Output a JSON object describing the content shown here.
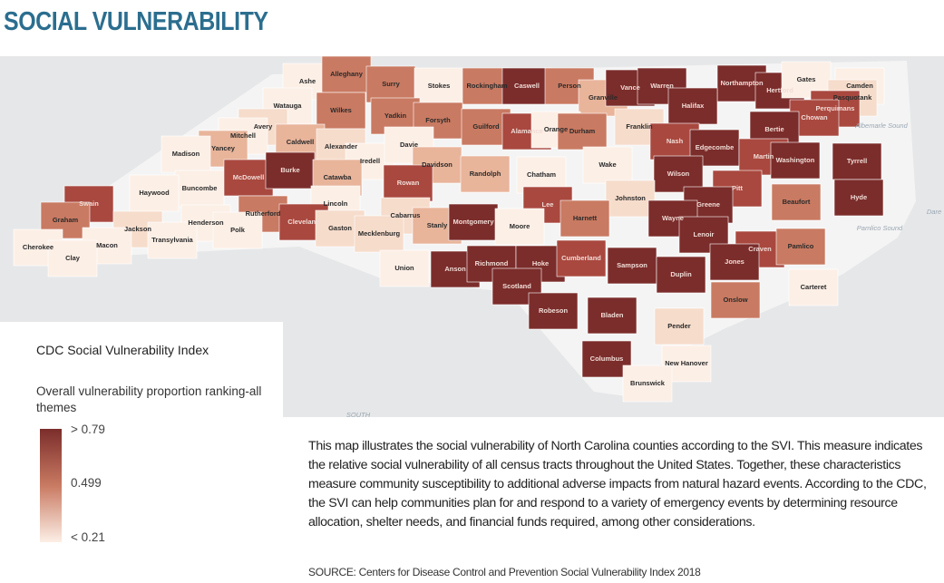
{
  "header": {
    "title": "SOCIAL VULNERABILITY"
  },
  "map": {
    "counties": [
      {
        "name": "Ashe",
        "color": "#fcefe6"
      },
      {
        "name": "Alleghany",
        "color": "#c97a62"
      },
      {
        "name": "Surry",
        "color": "#c97a62"
      },
      {
        "name": "Stokes",
        "color": "#fcefe6"
      },
      {
        "name": "Rockingham",
        "color": "#c97a62"
      },
      {
        "name": "Caswell",
        "color": "#7b2d2b"
      },
      {
        "name": "Person",
        "color": "#c97a62"
      },
      {
        "name": "Granville",
        "color": "#e8b49a"
      },
      {
        "name": "Vance",
        "color": "#7b2d2b"
      },
      {
        "name": "Warren",
        "color": "#7b2d2b"
      },
      {
        "name": "Northampton",
        "color": "#7b2d2b"
      },
      {
        "name": "Hertford",
        "color": "#7b2d2b"
      },
      {
        "name": "Gates",
        "color": "#fcefe6"
      },
      {
        "name": "Camden",
        "color": "#fcefe6"
      },
      {
        "name": "Pasquotank",
        "color": "#f6dccb"
      },
      {
        "name": "Perquimans",
        "color": "#a9483f"
      },
      {
        "name": "Chowan",
        "color": "#a9483f"
      },
      {
        "name": "Watauga",
        "color": "#fcefe6"
      },
      {
        "name": "Wilkes",
        "color": "#c97a62"
      },
      {
        "name": "Yadkin",
        "color": "#c97a62"
      },
      {
        "name": "Forsyth",
        "color": "#c97a62"
      },
      {
        "name": "Guilford",
        "color": "#c97a62"
      },
      {
        "name": "Alamance",
        "color": "#a9483f"
      },
      {
        "name": "Orange",
        "color": "#fcefe6"
      },
      {
        "name": "Durham",
        "color": "#c97a62"
      },
      {
        "name": "Franklin",
        "color": "#f6dccb"
      },
      {
        "name": "Halifax",
        "color": "#7b2d2b"
      },
      {
        "name": "Bertie",
        "color": "#7b2d2b"
      },
      {
        "name": "Avery",
        "color": "#f6dccb"
      },
      {
        "name": "Mitchell",
        "color": "#fcefe6"
      },
      {
        "name": "Caldwell",
        "color": "#e8b49a"
      },
      {
        "name": "Alexander",
        "color": "#f6dccb"
      },
      {
        "name": "Iredell",
        "color": "#fcefe6"
      },
      {
        "name": "Davie",
        "color": "#fcefe6"
      },
      {
        "name": "Davidson",
        "color": "#e8b49a"
      },
      {
        "name": "Yancey",
        "color": "#e8b49a"
      },
      {
        "name": "Madison",
        "color": "#fcefe6"
      },
      {
        "name": "Nash",
        "color": "#a9483f"
      },
      {
        "name": "Edgecombe",
        "color": "#7b2d2b"
      },
      {
        "name": "Martin",
        "color": "#a9483f"
      },
      {
        "name": "Washington",
        "color": "#7b2d2b"
      },
      {
        "name": "Tyrrell",
        "color": "#7b2d2b"
      },
      {
        "name": "Buncombe",
        "color": "#fcefe6"
      },
      {
        "name": "Haywood",
        "color": "#fcefe6"
      },
      {
        "name": "McDowell",
        "color": "#a9483f"
      },
      {
        "name": "Burke",
        "color": "#7b2d2b"
      },
      {
        "name": "Catawba",
        "color": "#e8b49a"
      },
      {
        "name": "Rowan",
        "color": "#a9483f"
      },
      {
        "name": "Randolph",
        "color": "#e8b49a"
      },
      {
        "name": "Chatham",
        "color": "#fcefe6"
      },
      {
        "name": "Wake",
        "color": "#fcefe6"
      },
      {
        "name": "Wilson",
        "color": "#7b2d2b"
      },
      {
        "name": "Pitt",
        "color": "#a9483f"
      },
      {
        "name": "Beaufort",
        "color": "#c97a62"
      },
      {
        "name": "Hyde",
        "color": "#7b2d2b"
      },
      {
        "name": "Swain",
        "color": "#a9483f"
      },
      {
        "name": "Graham",
        "color": "#c97a62"
      },
      {
        "name": "Lincoln",
        "color": "#fcefe6"
      },
      {
        "name": "Johnston",
        "color": "#f6dccb"
      },
      {
        "name": "Greene",
        "color": "#7b2d2b"
      },
      {
        "name": "Lee",
        "color": "#a9483f"
      },
      {
        "name": "Harnett",
        "color": "#c97a62"
      },
      {
        "name": "Rutherford",
        "color": "#c97a62"
      },
      {
        "name": "Cleveland",
        "color": "#a9483f"
      },
      {
        "name": "Gaston",
        "color": "#f6dccb"
      },
      {
        "name": "Cabarrus",
        "color": "#f6dccb"
      },
      {
        "name": "Mecklenburg",
        "color": "#f6dccb"
      },
      {
        "name": "Stanly",
        "color": "#e8b49a"
      },
      {
        "name": "Montgomery",
        "color": "#7b2d2b"
      },
      {
        "name": "Moore",
        "color": "#fcefe6"
      },
      {
        "name": "Jackson",
        "color": "#f6dccb"
      },
      {
        "name": "Henderson",
        "color": "#fcefe6"
      },
      {
        "name": "Polk",
        "color": "#fcefe6"
      },
      {
        "name": "Transylvania",
        "color": "#fcefe6"
      },
      {
        "name": "Wayne",
        "color": "#7b2d2b"
      },
      {
        "name": "Lenoir",
        "color": "#7b2d2b"
      },
      {
        "name": "Craven",
        "color": "#a9483f"
      },
      {
        "name": "Pamlico",
        "color": "#c97a62"
      },
      {
        "name": "Cherokee",
        "color": "#fcefe6"
      },
      {
        "name": "Macon",
        "color": "#fcefe6"
      },
      {
        "name": "Clay",
        "color": "#fcefe6"
      },
      {
        "name": "Union",
        "color": "#fcefe6"
      },
      {
        "name": "Anson",
        "color": "#7b2d2b"
      },
      {
        "name": "Richmond",
        "color": "#7b2d2b"
      },
      {
        "name": "Hoke",
        "color": "#7b2d2b"
      },
      {
        "name": "Cumberland",
        "color": "#a9483f"
      },
      {
        "name": "Sampson",
        "color": "#7b2d2b"
      },
      {
        "name": "Duplin",
        "color": "#7b2d2b"
      },
      {
        "name": "Jones",
        "color": "#7b2d2b"
      },
      {
        "name": "Carteret",
        "color": "#fcefe6"
      },
      {
        "name": "Scotland",
        "color": "#7b2d2b"
      },
      {
        "name": "Onslow",
        "color": "#c97a62"
      },
      {
        "name": "Robeson",
        "color": "#7b2d2b"
      },
      {
        "name": "Bladen",
        "color": "#7b2d2b"
      },
      {
        "name": "Pender",
        "color": "#f6dccb"
      },
      {
        "name": "Columbus",
        "color": "#7b2d2b"
      },
      {
        "name": "New Hanover",
        "color": "#fcefe6"
      },
      {
        "name": "Brunswick",
        "color": "#fcefe6"
      }
    ],
    "water_labels": [
      "Albemarle Sound",
      "Pamlico Sound",
      "SOUTH",
      "Dare"
    ]
  },
  "legend": {
    "title": "CDC Social Vulnerability Index",
    "subtitle": "Overall vulnerability proportion ranking-all themes",
    "stops": [
      {
        "label": "> 0.79",
        "color": "#7b2d2b"
      },
      {
        "label": "0.499",
        "color": "#c97a62"
      },
      {
        "label": "< 0.21",
        "color": "#fcefe6"
      }
    ]
  },
  "body": {
    "paragraph": "This map illustrates the social vulnerability of North Carolina counties according to the SVI. This measure indicates the relative social vulnerability of all census tracts throughout the United States. Together, these characteristics measure community susceptibility to additional adverse impacts from natural hazard events. According to the CDC, the SVI can help communities plan for and respond to a variety of emergency events by determining resource allocation, shelter needs, and financial funds required, among other considerations.",
    "source": "SOURCE: Centers for Disease Control and Prevention Social Vulnerability Index 2018"
  }
}
